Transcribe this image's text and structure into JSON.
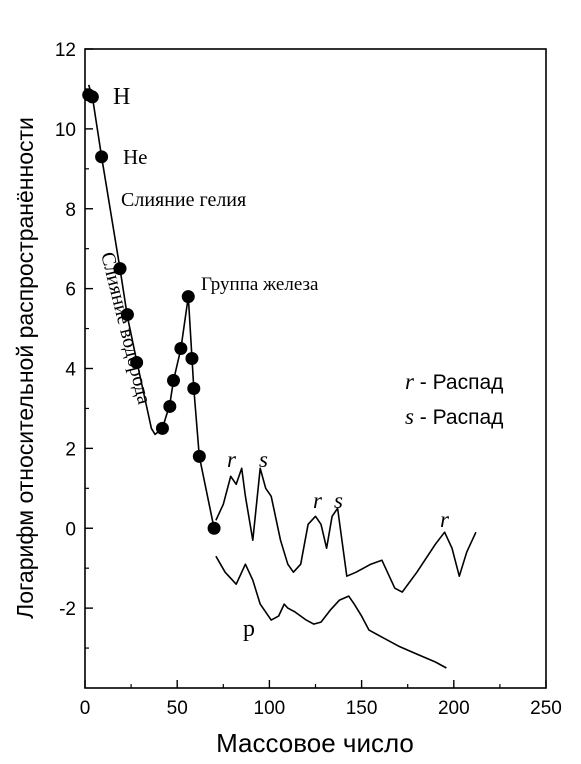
{
  "chart_data": {
    "type": "line",
    "xlabel": "Массовое число",
    "ylabel": "Логарифм относительной распространённости",
    "xlim": [
      0,
      250
    ],
    "ylim": [
      -4,
      12
    ],
    "x_ticks": [
      0,
      50,
      100,
      150,
      200,
      250
    ],
    "y_ticks": [
      -2,
      0,
      2,
      4,
      6,
      8,
      10,
      12
    ],
    "grid": false,
    "series": [
      {
        "style": "line-with-markers",
        "x": [
          2,
          4,
          9,
          19,
          23,
          28,
          36,
          38,
          42,
          46,
          48,
          52,
          56,
          58,
          59,
          62,
          70
        ],
        "y": [
          11.1,
          10.8,
          9.3,
          6.5,
          5.3,
          4.2,
          2.5,
          2.35,
          2.5,
          3.1,
          3.7,
          4.5,
          5.8,
          4.25,
          3.5,
          1.8,
          0.0
        ],
        "markers": [
          {
            "x": 2,
            "y": 10.85
          },
          {
            "x": 4,
            "y": 10.8
          },
          {
            "x": 9,
            "y": 9.3
          },
          {
            "x": 19,
            "y": 6.5
          },
          {
            "x": 23,
            "y": 5.35
          },
          {
            "x": 28,
            "y": 4.15
          },
          {
            "x": 42,
            "y": 2.5
          },
          {
            "x": 46,
            "y": 3.05
          },
          {
            "x": 48,
            "y": 3.7
          },
          {
            "x": 52,
            "y": 4.5
          },
          {
            "x": 56,
            "y": 5.8
          },
          {
            "x": 58,
            "y": 4.25
          },
          {
            "x": 59,
            "y": 3.5
          },
          {
            "x": 62,
            "y": 1.8
          },
          {
            "x": 70,
            "y": 0.0
          }
        ]
      },
      {
        "style": "line",
        "x": [
          71,
          75,
          79,
          82,
          85,
          87,
          91,
          95,
          98,
          101,
          106,
          110,
          113,
          117,
          121,
          125,
          128,
          131,
          134,
          137,
          142,
          147,
          155,
          161,
          168,
          172,
          180,
          190,
          195,
          199,
          203,
          207,
          212
        ],
        "y": [
          0.2,
          0.6,
          1.3,
          1.1,
          1.5,
          0.8,
          -0.3,
          1.5,
          1.0,
          0.8,
          -0.3,
          -0.9,
          -1.1,
          -0.9,
          0.1,
          0.3,
          0.1,
          -0.5,
          0.3,
          0.5,
          -1.2,
          -1.1,
          -0.9,
          -0.8,
          -1.5,
          -1.6,
          -1.1,
          -0.4,
          -0.1,
          -0.5,
          -1.2,
          -0.6,
          -0.1
        ]
      },
      {
        "style": "line",
        "x": [
          71,
          76,
          82,
          87,
          91,
          95,
          101,
          105,
          108,
          110,
          114,
          120,
          124,
          128,
          133,
          138,
          143,
          146,
          150,
          154,
          160,
          170,
          180,
          190,
          196
        ],
        "y": [
          -0.7,
          -1.1,
          -1.4,
          -0.9,
          -1.3,
          -1.9,
          -2.3,
          -2.2,
          -1.9,
          -2.0,
          -2.1,
          -2.3,
          -2.4,
          -2.35,
          -2.05,
          -1.8,
          -1.7,
          -1.9,
          -2.2,
          -2.55,
          -2.7,
          -2.95,
          -3.15,
          -3.35,
          -3.5
        ]
      }
    ],
    "annotations": {
      "H": "H",
      "He": "He",
      "helium_fusion": "Слияние гелия",
      "hydrogen_fusion": "Слияние водорода",
      "iron_group": "Группа железа",
      "r1": "r",
      "s1": "s",
      "r2": "r",
      "s2": "s",
      "r3": "r",
      "p": "p"
    },
    "legend": [
      {
        "symbol": "r",
        "text": " - Распад"
      },
      {
        "symbol": "s",
        "text": " - Распад"
      }
    ]
  }
}
